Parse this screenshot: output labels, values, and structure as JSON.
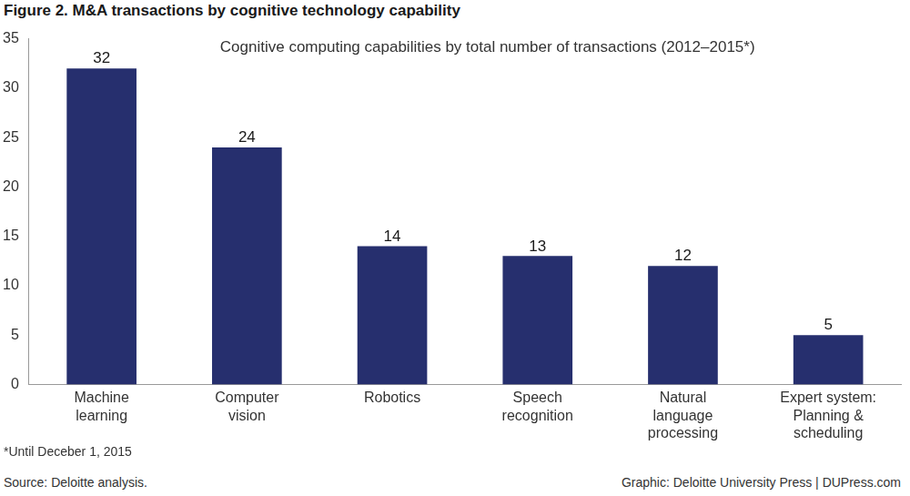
{
  "chart_data": {
    "type": "bar",
    "title": "Figure 2. M&A transactions by cognitive technology capability",
    "subtitle": "Cognitive computing capabilities by total number of transactions (2012–2015*)",
    "annotations": [
      "*Until Deceber 1, 2015",
      "Source: Deloitte analysis.",
      "Graphic: Deloitte University Press | DUPress.com"
    ],
    "categories": [
      [
        "Machine",
        "learning"
      ],
      [
        "Computer",
        "vision"
      ],
      [
        "Robotics"
      ],
      [
        "Speech",
        "recognition"
      ],
      [
        "Natural",
        "language",
        "processing"
      ],
      [
        "Expert system:",
        "Planning &",
        "scheduling"
      ]
    ],
    "values": [
      32,
      24,
      14,
      13,
      12,
      5
    ],
    "color": "#262f6e",
    "ylim": [
      0,
      35
    ],
    "yticks": [
      0,
      5,
      10,
      15,
      20,
      25,
      30,
      35
    ],
    "grid": false,
    "data_labels": true
  }
}
